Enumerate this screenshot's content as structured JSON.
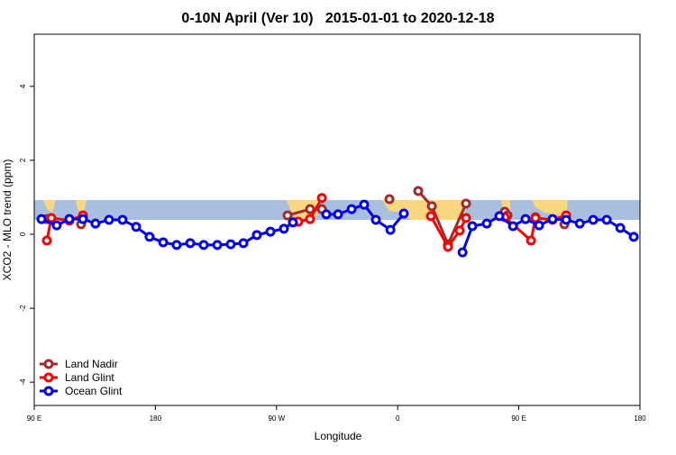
{
  "chart_data": {
    "type": "line",
    "title": "0-10N April (Ver 10)   2015-01-01 to 2020-12-18",
    "xlabel": "Longitude",
    "ylabel": "XCO2 - MLO trend (ppm)",
    "xlim": [
      90,
      540
    ],
    "xticks": [
      {
        "value": 90,
        "label": "90 E"
      },
      180,
      {
        "value": 270,
        "label": "90 W"
      },
      {
        "value": 360,
        "label": "0"
      },
      {
        "value": 450,
        "label": "90 E"
      },
      {
        "value": 540,
        "label": "180"
      }
    ],
    "ylim": [
      -4.63,
      5.41
    ],
    "yticks": [
      -4,
      -2,
      0,
      2,
      4
    ],
    "legend": "bottomleft",
    "series": [
      {
        "name": "Land Nadir",
        "color": "#a52a2a",
        "x": [
          99.4,
          124.8,
          278.2,
          294.9,
          303.7,
          353.9,
          375.3,
          385.4,
          397.4,
          410.8,
          439.6,
          441.6,
          462.4,
          483.9
        ],
        "values": [
          0.41,
          0.27,
          0.51,
          0.68,
          0.68,
          0.95,
          1.17,
          0.76,
          -0.27,
          0.83,
          0.61,
          0.51,
          0.46,
          0.27
        ]
      },
      {
        "name": "Land Glint",
        "color": "#ff0000",
        "x": [
          99.4,
          102.7,
          116.1,
          126.2,
          286.2,
          294.9,
          303.7,
          384.7,
          397.4,
          406.1,
          410.8,
          439.6,
          459.1,
          462.4,
          475.1,
          485.2
        ],
        "values": [
          -0.17,
          0.44,
          0.37,
          0.51,
          0.34,
          0.41,
          0.98,
          0.49,
          -0.34,
          0.1,
          0.44,
          0.46,
          -0.17,
          0.44,
          0.39,
          0.51
        ]
      },
      {
        "name": "Ocean Glint",
        "color": "#0000ee",
        "x": [
          95.4,
          106.7,
          116.1,
          126.2,
          135.5,
          145.6,
          155.6,
          165.7,
          175.7,
          185.8,
          195.8,
          205.9,
          215.9,
          226.0,
          236.0,
          245.4,
          255.4,
          265.5,
          275.5,
          282.2,
          307.0,
          315.7,
          325.8,
          335.1,
          343.8,
          354.6,
          364.6,
          408.2,
          415.5,
          426.2,
          435.6,
          445.7,
          455.0,
          465.1,
          475.1,
          485.2,
          495.3,
          505.3,
          515.3,
          525.4,
          535.4
        ],
        "values": [
          0.41,
          0.24,
          0.41,
          0.41,
          0.29,
          0.39,
          0.39,
          0.2,
          -0.07,
          -0.22,
          -0.29,
          -0.24,
          -0.29,
          -0.29,
          -0.27,
          -0.24,
          -0.02,
          0.07,
          0.15,
          0.32,
          0.54,
          0.54,
          0.68,
          0.8,
          0.39,
          0.12,
          0.56,
          -0.49,
          0.22,
          0.29,
          0.49,
          0.22,
          0.41,
          0.24,
          0.41,
          0.39,
          0.29,
          0.39,
          0.39,
          0.17,
          -0.07
        ]
      }
    ]
  }
}
